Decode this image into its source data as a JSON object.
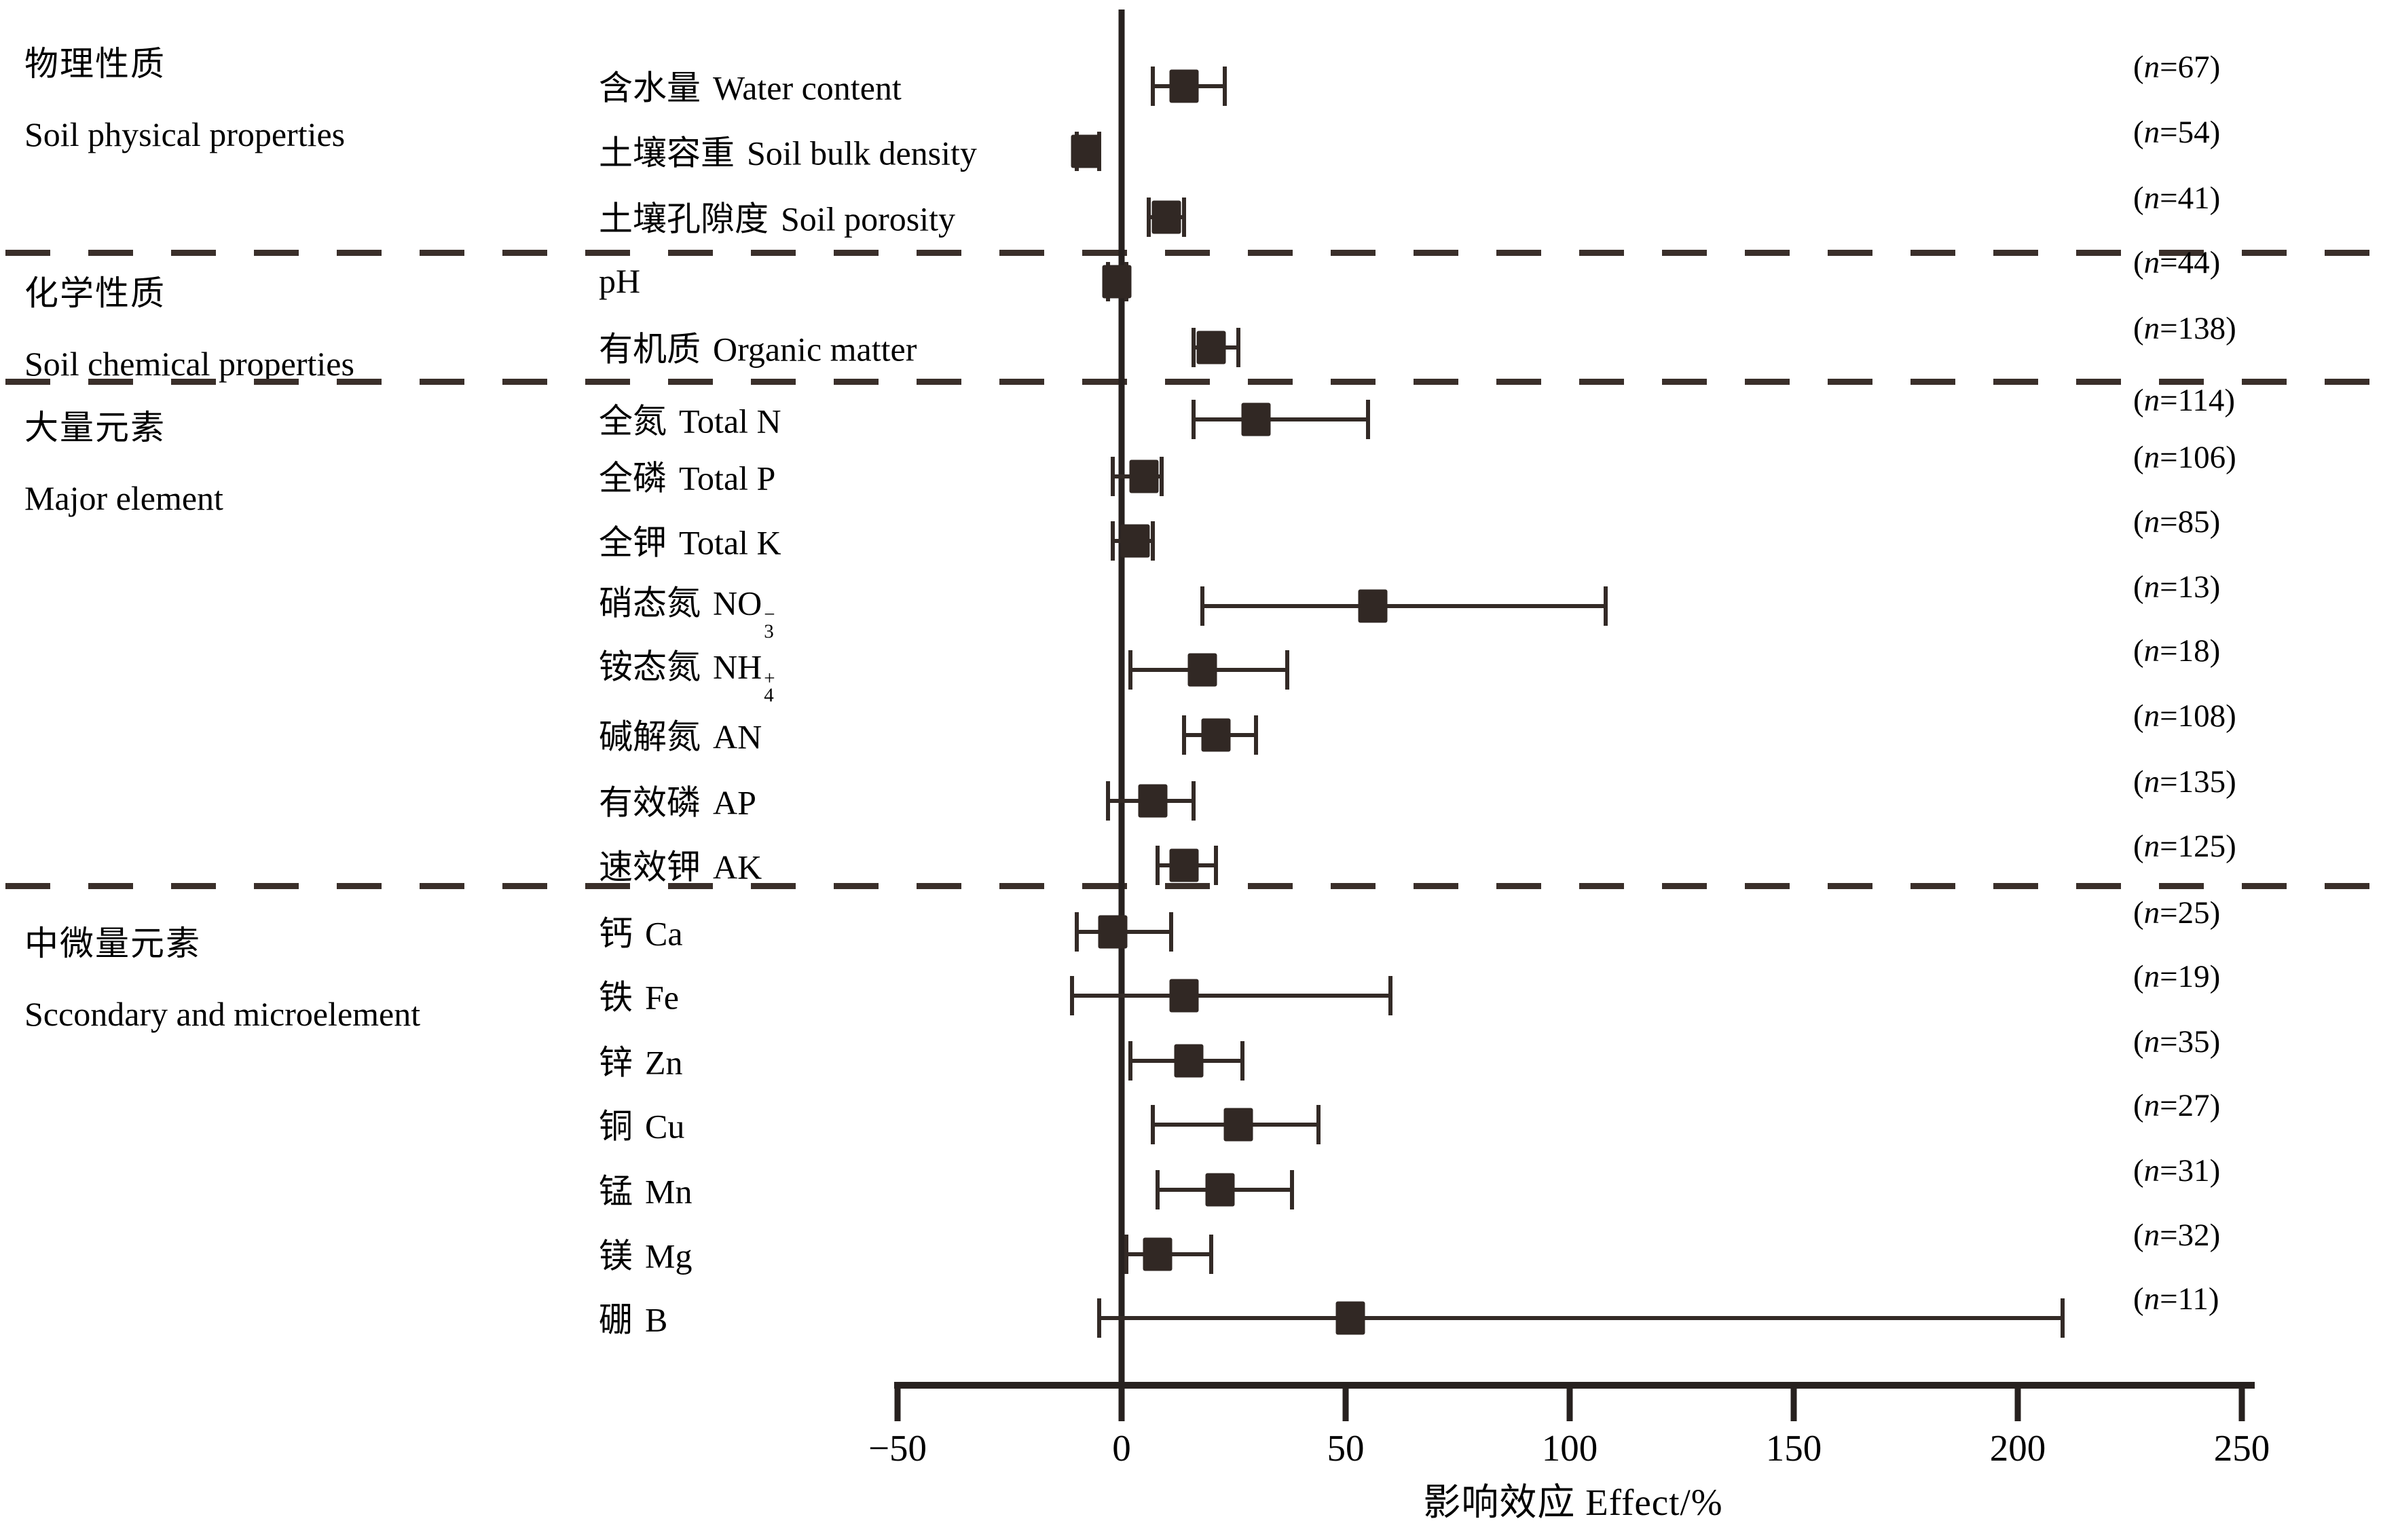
{
  "figure": {
    "background": "#ffffff",
    "marker_color": "#312824",
    "line_color": "#27211f",
    "dash_color": "#3a2f2a"
  },
  "categories": [
    {
      "zh": "物理性质",
      "en": "Soil physical properties"
    },
    {
      "zh": "化学性质",
      "en": "Soil chemical properties"
    },
    {
      "zh": "大量元素",
      "en": "Major element"
    },
    {
      "zh": "中微量元素",
      "en": "Sccondary and microelement"
    }
  ],
  "n_format": {
    "open": "(",
    "var": "n",
    "eq": "=",
    "close": ")"
  },
  "chart_data": {
    "type": "scatter",
    "subtype": "forest-plot-horizontal-error-bars",
    "x_label_zh": "影响效应",
    "x_label_en": "Effect/%",
    "x_range": [
      -50,
      250
    ],
    "x_ticks": [
      -50,
      0,
      50,
      100,
      150,
      200,
      250
    ],
    "x_tick_labels": [
      "−50",
      "0",
      "50",
      "100",
      "150",
      "200",
      "250"
    ],
    "zero_reference_line": 0,
    "grid": false,
    "separators_after_rows": [
      3,
      5,
      13
    ],
    "rows": [
      {
        "group": 0,
        "zh": "含水量",
        "en": "Water content",
        "n": 67,
        "effect": 14,
        "ci_low": 7,
        "ci_high": 23
      },
      {
        "group": 0,
        "zh": "土壤容重",
        "en": "Soil bulk density",
        "n": 54,
        "effect": -8,
        "ci_low": -10,
        "ci_high": -5
      },
      {
        "group": 0,
        "zh": "土壤孔隙度",
        "en": "Soil porosity",
        "n": 41,
        "effect": 10,
        "ci_low": 6,
        "ci_high": 14
      },
      {
        "group": 1,
        "zh": "",
        "en": "pH",
        "n": 44,
        "effect": -1,
        "ci_low": -3,
        "ci_high": 1
      },
      {
        "group": 1,
        "zh": "有机质",
        "en": "Organic matter",
        "n": 138,
        "effect": 20,
        "ci_low": 16,
        "ci_high": 26
      },
      {
        "group": 2,
        "zh": "全氮",
        "en": "Total N",
        "n": 114,
        "effect": 30,
        "ci_low": 16,
        "ci_high": 55
      },
      {
        "group": 2,
        "zh": "全磷",
        "en": "Total P",
        "n": 106,
        "effect": 5,
        "ci_low": -2,
        "ci_high": 9
      },
      {
        "group": 2,
        "zh": "全钾",
        "en": "Total K",
        "n": 85,
        "effect": 3,
        "ci_low": -2,
        "ci_high": 7
      },
      {
        "group": 2,
        "zh": "硝态氮",
        "en": "NO",
        "en_sub": "3",
        "en_sup": "−",
        "n": 13,
        "effect": 56,
        "ci_low": 18,
        "ci_high": 108
      },
      {
        "group": 2,
        "zh": "铵态氮",
        "en": "NH",
        "en_sub": "4",
        "en_sup": "+",
        "n": 18,
        "effect": 18,
        "ci_low": 2,
        "ci_high": 37
      },
      {
        "group": 2,
        "zh": "碱解氮",
        "en": "AN",
        "n": 108,
        "effect": 21,
        "ci_low": 14,
        "ci_high": 30
      },
      {
        "group": 2,
        "zh": "有效磷",
        "en": "AP",
        "n": 135,
        "effect": 7,
        "ci_low": -3,
        "ci_high": 16
      },
      {
        "group": 2,
        "zh": "速效钾",
        "en": "AK",
        "n": 125,
        "effect": 14,
        "ci_low": 8,
        "ci_high": 21
      },
      {
        "group": 3,
        "zh": "钙",
        "en": "Ca",
        "n": 25,
        "effect": -2,
        "ci_low": -10,
        "ci_high": 11
      },
      {
        "group": 3,
        "zh": "铁",
        "en": "Fe",
        "n": 19,
        "effect": 14,
        "ci_low": -11,
        "ci_high": 60
      },
      {
        "group": 3,
        "zh": "锌",
        "en": "Zn",
        "n": 35,
        "effect": 15,
        "ci_low": 2,
        "ci_high": 27
      },
      {
        "group": 3,
        "zh": "铜",
        "en": "Cu",
        "n": 27,
        "effect": 26,
        "ci_low": 7,
        "ci_high": 44
      },
      {
        "group": 3,
        "zh": "锰",
        "en": "Mn",
        "n": 31,
        "effect": 22,
        "ci_low": 8,
        "ci_high": 38
      },
      {
        "group": 3,
        "zh": "镁",
        "en": "Mg",
        "n": 32,
        "effect": 8,
        "ci_low": 1,
        "ci_high": 20
      },
      {
        "group": 3,
        "zh": "硼",
        "en": "B",
        "n": 11,
        "effect": 51,
        "ci_low": -5,
        "ci_high": 210
      }
    ]
  }
}
